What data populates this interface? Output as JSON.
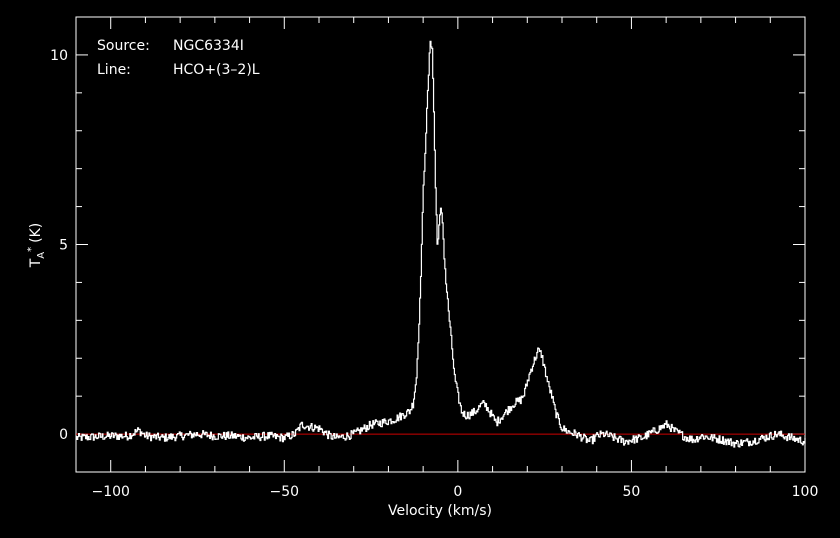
{
  "annotations": {
    "source_label": "Source:",
    "source_value": "NGC6334I",
    "line_label": "Line:",
    "line_value": "HCO+(3–2)L"
  },
  "chart_data": {
    "type": "line",
    "title": "",
    "xlabel": "Velocity (km/s)",
    "ylabel_main": "T",
    "ylabel_sub": "A",
    "ylabel_sup": "*",
    "ylabel_unit": "(K)",
    "xlim": [
      -110,
      100
    ],
    "ylim": [
      -1.0,
      11.0
    ],
    "grid": false,
    "x_ticks": [
      {
        "value": -100,
        "label": "−100"
      },
      {
        "value": -50,
        "label": "−50"
      },
      {
        "value": 0,
        "label": "0"
      },
      {
        "value": 50,
        "label": "50"
      },
      {
        "value": 100,
        "label": "100"
      }
    ],
    "y_ticks": [
      {
        "value": 0,
        "label": "0"
      },
      {
        "value": 5,
        "label": "5"
      },
      {
        "value": 10,
        "label": "10"
      }
    ],
    "baseline": {
      "value": 0,
      "color": "#cc0000"
    },
    "series": [
      {
        "color": "#ffffff",
        "x": [
          -110,
          -100,
          -95,
          -92,
          -90,
          -85,
          -80,
          -75,
          -70,
          -65,
          -60,
          -55,
          -50,
          -47,
          -45,
          -43,
          -40,
          -37,
          -35,
          -32,
          -30,
          -27,
          -25,
          -22,
          -20,
          -18,
          -16,
          -14,
          -13,
          -12,
          -11,
          -10,
          -9.5,
          -9,
          -8.5,
          -8,
          -7.5,
          -7,
          -6.5,
          -6,
          -5.5,
          -5,
          -4.5,
          -4,
          -3.5,
          -3,
          -2.5,
          -2,
          -1,
          0,
          1,
          2,
          3,
          4,
          5,
          6,
          7,
          8,
          9,
          10,
          11,
          12,
          14,
          16,
          18,
          19,
          20,
          21,
          22,
          23,
          24,
          25,
          26,
          27,
          28,
          29,
          30,
          32,
          34,
          36,
          38,
          40,
          42,
          45,
          48,
          50,
          53,
          55,
          57,
          59,
          60,
          61,
          62,
          64,
          66,
          68,
          70,
          73,
          76,
          80,
          84,
          88,
          90,
          92,
          94,
          96,
          98,
          100
        ],
        "y": [
          -0.1,
          -0.05,
          -0.05,
          0.1,
          -0.05,
          -0.1,
          -0.05,
          0.0,
          -0.05,
          -0.05,
          -0.1,
          -0.05,
          -0.1,
          0.0,
          0.25,
          0.2,
          0.15,
          -0.05,
          -0.1,
          -0.05,
          0.0,
          0.15,
          0.25,
          0.3,
          0.35,
          0.4,
          0.5,
          0.6,
          0.8,
          1.5,
          3.5,
          6.5,
          7.5,
          8.5,
          9.5,
          10.4,
          10.2,
          8.5,
          6.5,
          5.0,
          5.5,
          5.9,
          5.6,
          4.7,
          4.0,
          3.5,
          3.0,
          2.5,
          1.5,
          1.0,
          0.6,
          0.5,
          0.5,
          0.55,
          0.6,
          0.7,
          0.8,
          0.75,
          0.6,
          0.45,
          0.3,
          0.4,
          0.6,
          0.8,
          0.9,
          1.05,
          1.4,
          1.7,
          1.95,
          2.2,
          2.1,
          1.7,
          1.3,
          1.0,
          0.6,
          0.35,
          0.15,
          0.05,
          0.0,
          -0.1,
          -0.2,
          -0.05,
          0.0,
          -0.1,
          -0.2,
          -0.15,
          -0.1,
          0.0,
          0.1,
          0.2,
          0.25,
          0.2,
          0.1,
          0.0,
          -0.1,
          -0.15,
          -0.05,
          -0.1,
          -0.15,
          -0.25,
          -0.2,
          -0.1,
          -0.05,
          0.0,
          -0.05,
          -0.1,
          -0.15,
          -0.2
        ]
      }
    ]
  }
}
